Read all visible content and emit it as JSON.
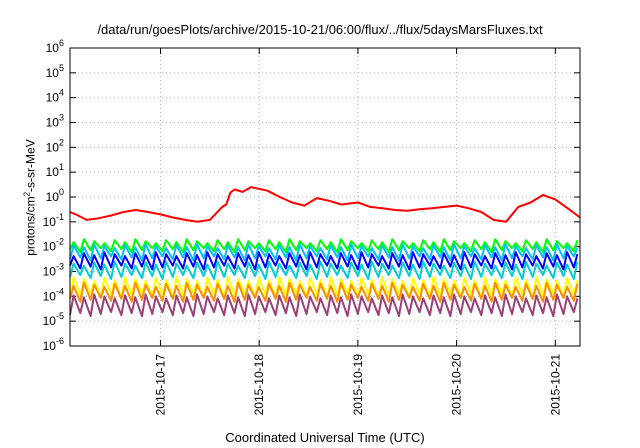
{
  "chart_data": {
    "type": "line",
    "title": "/data/run/goesPlots/archive/2015-10-21/06:00/flux/../flux/5daysMarsFluxes.txt",
    "xlabel": "Coordinated Universal Time (UTC)",
    "ylabel": {
      "prefix": "protons/cm",
      "sup": "2",
      "suffix": "-s-sr-MeV"
    },
    "x_range": [
      "2015-10-16T02:00",
      "2015-10-21T06:00"
    ],
    "x_ticks": [
      "2015-10-17",
      "2015-10-18",
      "2015-10-19",
      "2015-10-20",
      "2015-10-21"
    ],
    "y_scale": "log",
    "y_range": [
      1e-06,
      1000000.0
    ],
    "y_ticks": [
      {
        "base": "10",
        "exp": "6"
      },
      {
        "base": "10",
        "exp": "5"
      },
      {
        "base": "10",
        "exp": "4"
      },
      {
        "base": "10",
        "exp": "3"
      },
      {
        "base": "10",
        "exp": "2"
      },
      {
        "base": "10",
        "exp": "1"
      },
      {
        "base": "10",
        "exp": "0"
      },
      {
        "base": "10",
        "exp": "-1"
      },
      {
        "base": "10",
        "exp": "-2"
      },
      {
        "base": "10",
        "exp": "-3"
      },
      {
        "base": "10",
        "exp": "-4"
      },
      {
        "base": "10",
        "exp": "-5"
      },
      {
        "base": "10",
        "exp": "-6"
      }
    ],
    "grid": true,
    "series": [
      {
        "color": "#ff0000",
        "pattern": "smooth",
        "x": [
          "2015-10-16T02:00",
          "2015-10-16T04:00",
          "2015-10-16T06:00",
          "2015-10-16T09:00",
          "2015-10-16T12:00",
          "2015-10-16T15:00",
          "2015-10-16T18:00",
          "2015-10-16T21:00",
          "2015-10-17T00:00",
          "2015-10-17T03:00",
          "2015-10-17T06:00",
          "2015-10-17T09:00",
          "2015-10-17T12:00",
          "2015-10-17T15:00",
          "2015-10-17T16:00",
          "2015-10-17T17:00",
          "2015-10-17T18:00",
          "2015-10-17T20:00",
          "2015-10-17T22:00",
          "2015-10-18T02:00",
          "2015-10-18T05:00",
          "2015-10-18T08:00",
          "2015-10-18T11:00",
          "2015-10-18T14:00",
          "2015-10-18T17:00",
          "2015-10-18T20:00",
          "2015-10-19T00:00",
          "2015-10-19T03:00",
          "2015-10-19T06:00",
          "2015-10-19T09:00",
          "2015-10-19T12:00",
          "2015-10-19T15:00",
          "2015-10-19T18:00",
          "2015-10-19T21:00",
          "2015-10-20T00:00",
          "2015-10-20T03:00",
          "2015-10-20T06:00",
          "2015-10-20T09:00",
          "2015-10-20T12:00",
          "2015-10-20T15:00",
          "2015-10-20T18:00",
          "2015-10-20T21:00",
          "2015-10-21T00:00",
          "2015-10-21T03:00",
          "2015-10-21T06:00"
        ],
        "values": [
          0.25,
          0.18,
          0.12,
          0.14,
          0.18,
          0.25,
          0.3,
          0.25,
          0.2,
          0.15,
          0.12,
          0.1,
          0.12,
          0.4,
          0.5,
          1.5,
          2.0,
          1.6,
          2.5,
          1.8,
          1.0,
          0.6,
          0.45,
          0.9,
          0.7,
          0.5,
          0.6,
          0.4,
          0.35,
          0.3,
          0.28,
          0.32,
          0.35,
          0.4,
          0.45,
          0.35,
          0.25,
          0.12,
          0.1,
          0.4,
          0.6,
          1.2,
          0.8,
          0.35,
          0.15
        ]
      },
      {
        "color": "#00ff00",
        "pattern": "sawtooth",
        "low": 0.006,
        "high": 0.02
      },
      {
        "color": "#00bfff",
        "pattern": "sawtooth",
        "low": 0.0028,
        "high": 0.0125
      },
      {
        "color": "#0000ff",
        "pattern": "sawtooth",
        "low": 0.0012,
        "high": 0.006
      },
      {
        "color": "#00ced1",
        "pattern": "sawtooth",
        "low": 0.0005,
        "high": 0.0025
      },
      {
        "color": "#ffff00",
        "pattern": "sawtooth",
        "low": 9e-05,
        "high": 0.0006
      },
      {
        "color": "#ff8c00",
        "pattern": "sawtooth",
        "low": 6e-05,
        "high": 0.00035
      },
      {
        "color": "#9b3f79",
        "pattern": "sawtooth",
        "low": 1.6e-05,
        "high": 0.00012
      }
    ]
  }
}
